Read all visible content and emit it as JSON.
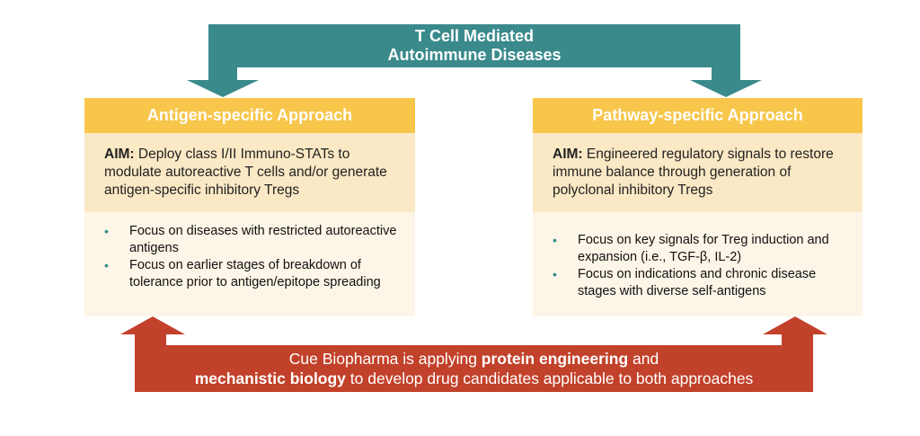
{
  "header": {
    "title_line1": "T Cell Mediated",
    "title_line2": "Autoimmune Diseases"
  },
  "left": {
    "title": "Antigen-specific Approach",
    "aim_label": "AIM:",
    "aim_text": " Deploy class I/II Immuno-STATs to modulate autoreactive T cells and/or generate antigen-specific inhibitory Tregs",
    "bullets": [
      "Focus on diseases with restricted autoreactive antigens",
      "Focus on earlier stages of breakdown of tolerance prior to antigen/epitope spreading"
    ]
  },
  "right": {
    "title": "Pathway-specific Approach",
    "aim_label": "AIM:",
    "aim_text": " Engineered regulatory signals to restore immune balance through generation of polyclonal inhibitory Tregs",
    "bullets": [
      "Focus on key signals for Treg induction and expansion (i.e., TGF-β, IL-2)",
      "Focus on indications and chronic disease stages with diverse self-antigens"
    ]
  },
  "footer": {
    "part1": "Cue Biopharma is applying ",
    "bold1": "protein engineering",
    "part2": " and",
    "bold2": "mechanistic biology",
    "part3": " to develop drug candidates applicable to both approaches"
  },
  "bullet_glyph": "•",
  "colors": {
    "teal": "#3a8a8c",
    "gold": "#f7c64b",
    "aim_bg": "#fbe8c5",
    "bullet_bg": "#fdf5e7",
    "red": "#c2412a"
  }
}
